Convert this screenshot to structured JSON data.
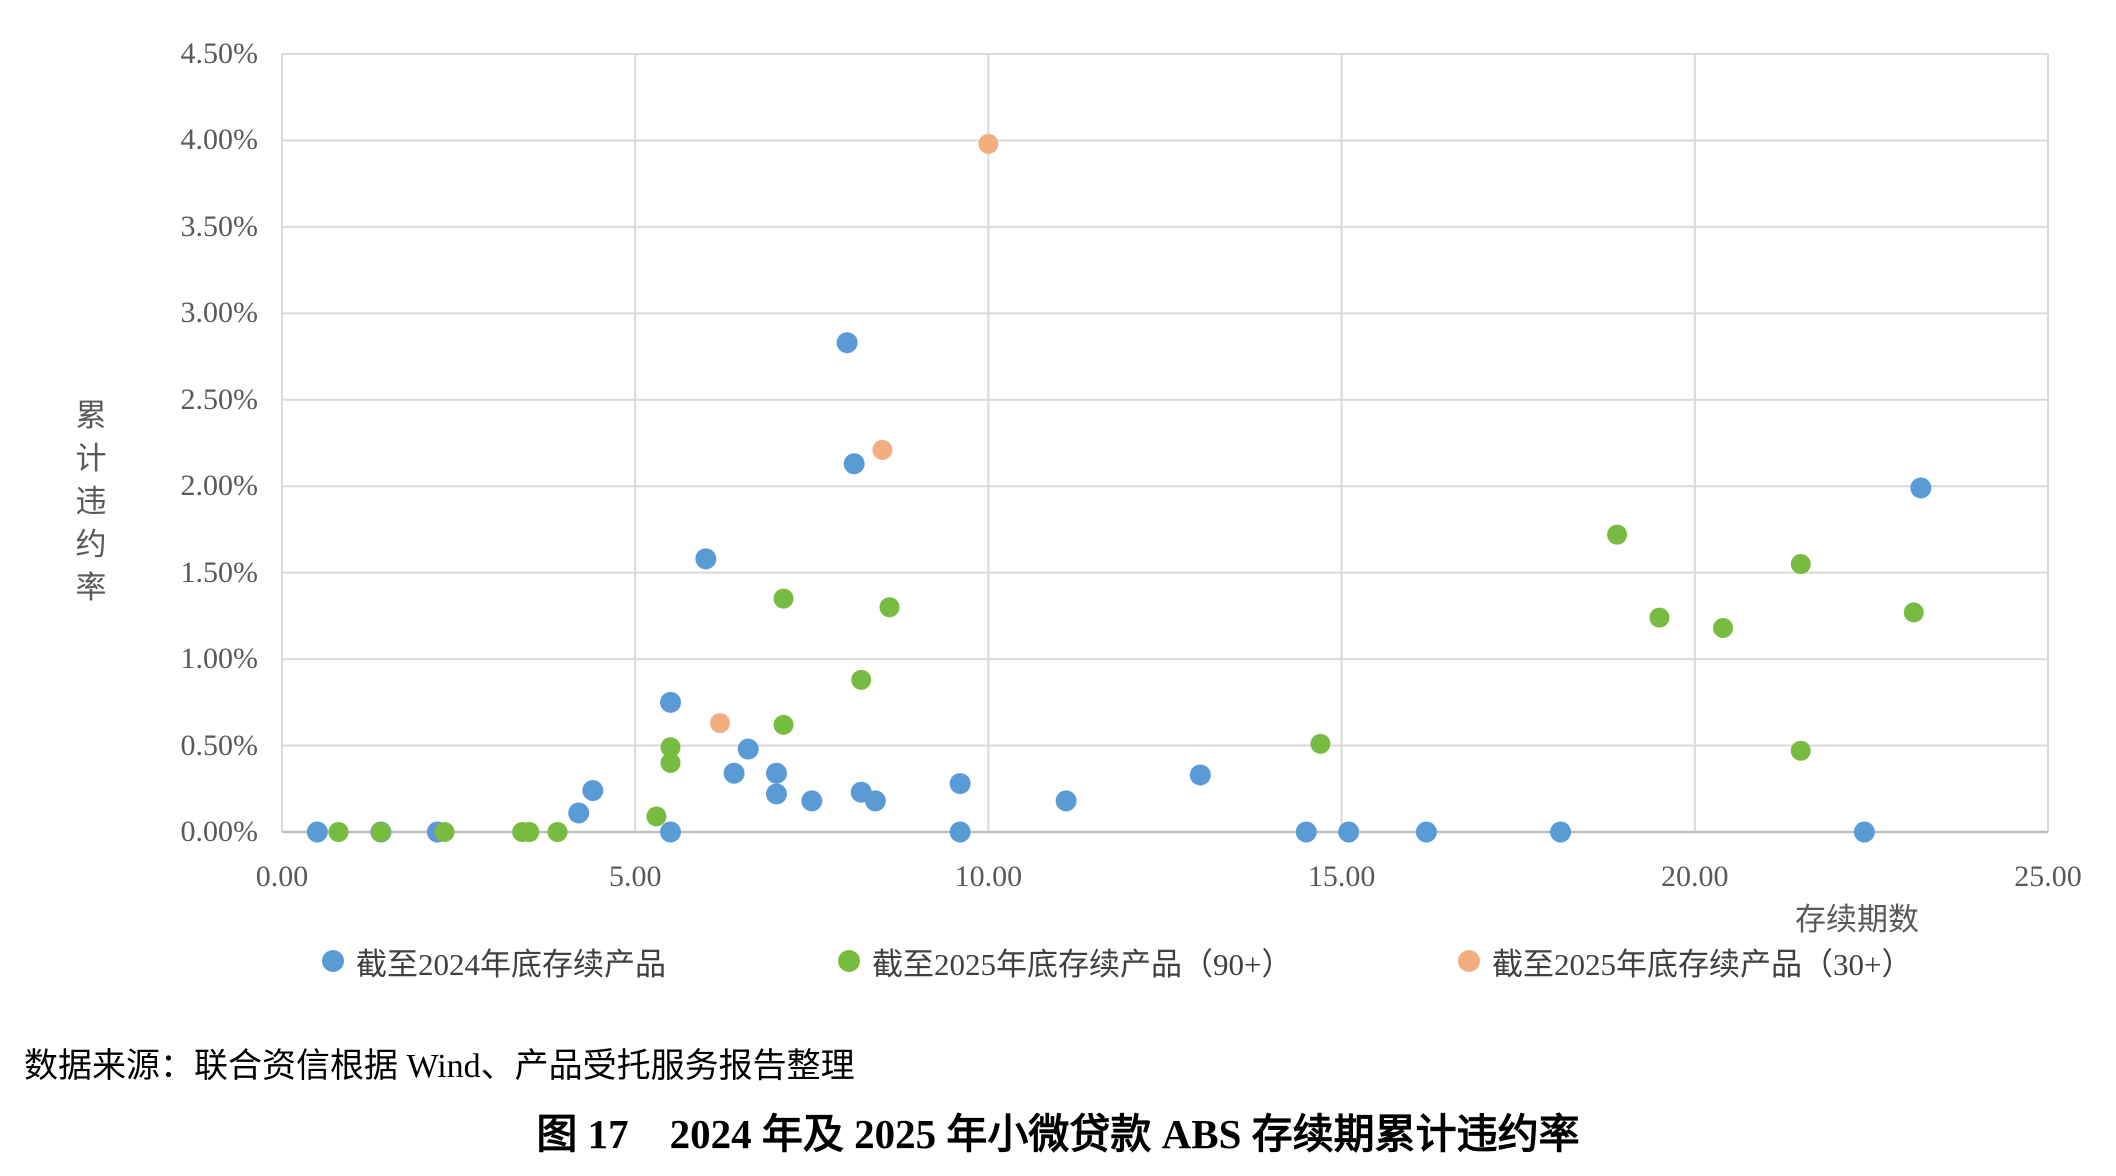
{
  "chart_data": {
    "type": "scatter",
    "title": "图 17　2024 年及 2025 年小微贷款 ABS 存续期累计违约率",
    "xlabel": "存续期数",
    "ylabel": "累计违约率",
    "xlim": [
      0,
      25
    ],
    "ylim": [
      0,
      4.5
    ],
    "x_ticks": [
      0,
      5,
      10,
      15,
      20,
      25
    ],
    "x_tick_labels": [
      "0.00",
      "5.00",
      "10.00",
      "15.00",
      "20.00",
      "25.00"
    ],
    "y_ticks": [
      0,
      0.5,
      1.0,
      1.5,
      2.0,
      2.5,
      3.0,
      3.5,
      4.0,
      4.5
    ],
    "y_tick_labels": [
      "0.00%",
      "0.50%",
      "1.00%",
      "1.50%",
      "2.00%",
      "2.50%",
      "3.00%",
      "3.50%",
      "4.00%",
      "4.50%"
    ],
    "grid": true,
    "legend_position": "bottom",
    "series": [
      {
        "name": "截至2024年底存续产品",
        "color": "#5B9BD5",
        "points": [
          [
            0.5,
            0.0
          ],
          [
            1.4,
            0.0
          ],
          [
            2.2,
            0.0
          ],
          [
            4.2,
            0.11
          ],
          [
            4.4,
            0.24
          ],
          [
            5.5,
            0.0
          ],
          [
            5.5,
            0.75
          ],
          [
            6.0,
            1.58
          ],
          [
            6.4,
            0.34
          ],
          [
            6.6,
            0.48
          ],
          [
            7.0,
            0.34
          ],
          [
            7.0,
            0.22
          ],
          [
            7.5,
            0.18
          ],
          [
            8.0,
            2.83
          ],
          [
            8.1,
            2.13
          ],
          [
            8.2,
            0.23
          ],
          [
            8.4,
            0.18
          ],
          [
            9.6,
            0.28
          ],
          [
            9.6,
            0.0
          ],
          [
            11.1,
            0.18
          ],
          [
            13.0,
            0.33
          ],
          [
            14.5,
            0.0
          ],
          [
            15.1,
            0.0
          ],
          [
            16.2,
            0.0
          ],
          [
            18.1,
            0.0
          ],
          [
            22.4,
            0.0
          ],
          [
            23.2,
            1.99
          ]
        ]
      },
      {
        "name": "截至2025年底存续产品（90+）",
        "color": "#77BB41",
        "points": [
          [
            0.8,
            0.0
          ],
          [
            1.4,
            0.0
          ],
          [
            2.3,
            0.0
          ],
          [
            3.4,
            0.0
          ],
          [
            3.5,
            0.0
          ],
          [
            3.9,
            0.0
          ],
          [
            5.3,
            0.09
          ],
          [
            5.5,
            0.49
          ],
          [
            5.5,
            0.4
          ],
          [
            7.1,
            1.35
          ],
          [
            7.1,
            0.62
          ],
          [
            8.2,
            0.88
          ],
          [
            8.6,
            1.3
          ],
          [
            14.7,
            0.51
          ],
          [
            18.9,
            1.72
          ],
          [
            19.5,
            1.24
          ],
          [
            20.4,
            1.18
          ],
          [
            21.5,
            1.55
          ],
          [
            21.5,
            0.47
          ],
          [
            23.1,
            1.27
          ]
        ]
      },
      {
        "name": "截至2025年底存续产品（30+）",
        "color": "#F2AE81",
        "points": [
          [
            6.2,
            0.63
          ],
          [
            8.5,
            2.21
          ],
          [
            10.0,
            3.98
          ]
        ]
      }
    ],
    "colors": {
      "gridline": "#D9D9D9",
      "axis_line": "#BFBFBF",
      "tick_text": "#595959",
      "legend_text": "#3F3F3F"
    }
  },
  "source_note": "数据来源：联合资信根据 Wind、产品受托服务报告整理",
  "caption": "图 17　2024 年及 2025 年小微贷款 ABS 存续期累计违约率"
}
